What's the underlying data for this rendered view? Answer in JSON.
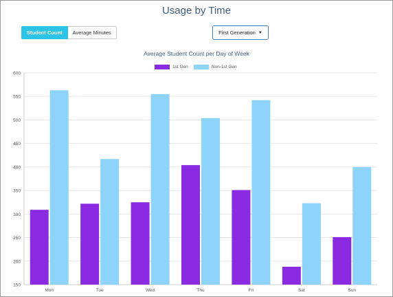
{
  "header": {
    "title": "Usage by Time"
  },
  "toggle": {
    "student_count_label": "Student Count",
    "average_minutes_label": "Average Minutes",
    "active": "Student Count"
  },
  "filter": {
    "selected": "First Generation"
  },
  "colors": {
    "series1": "#8a2be2",
    "series2": "#8dd3fa",
    "accent": "#2bc3e6"
  },
  "chart_data": {
    "type": "bar",
    "title": "Average Student Count per Day of Week",
    "categories": [
      "Mon",
      "Tue",
      "Wed",
      "Thu",
      "Fri",
      "Sat",
      "Sun"
    ],
    "series": [
      {
        "name": "1st Gen",
        "values": [
          309,
          322,
          325,
          404,
          351,
          188,
          251
        ]
      },
      {
        "name": "Non-1st Gen",
        "values": [
          563,
          417,
          555,
          504,
          542,
          323,
          400
        ]
      }
    ],
    "ylim": [
      150,
      600
    ],
    "yticks": [
      150,
      200,
      250,
      300,
      350,
      400,
      450,
      500,
      550,
      600
    ],
    "grid": true,
    "legend_placement": "top-center"
  }
}
